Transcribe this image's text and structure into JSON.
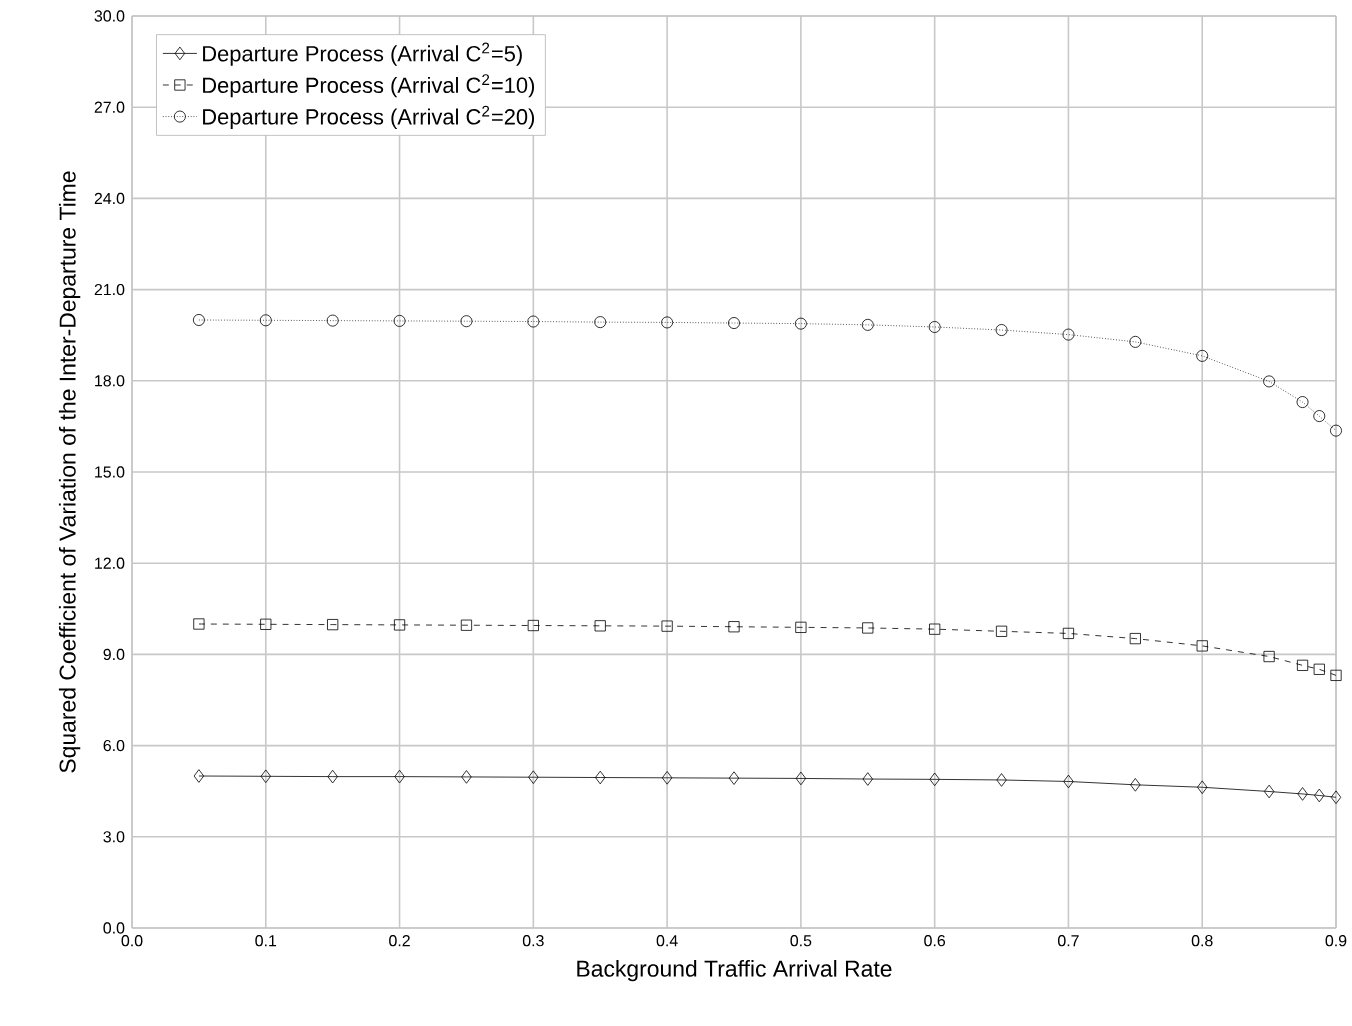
{
  "chart_data": {
    "type": "line",
    "xlabel": "Background Traffic Arrival Rate",
    "ylabel": "Squared Coefficient of Variation of the Inter-Departure Time",
    "x": [
      0.05,
      0.1,
      0.15,
      0.2,
      0.25,
      0.3,
      0.35,
      0.4,
      0.45,
      0.5,
      0.55,
      0.6,
      0.65,
      0.7,
      0.75,
      0.8,
      0.85,
      0.875,
      0.8875,
      0.9
    ],
    "series": [
      {
        "name": "Departure Process (Arrival C$^{2}$=5)",
        "color": "#000000",
        "marker": "diamond",
        "line_style": "solid",
        "values": [
          5.0,
          4.99,
          4.98,
          4.98,
          4.97,
          4.96,
          4.95,
          4.94,
          4.93,
          4.92,
          4.9,
          4.89,
          4.87,
          4.82,
          4.71,
          4.63,
          4.49,
          4.41,
          4.36,
          4.3
        ]
      },
      {
        "name": "Departure Process (Arrival C$^{2}$=10)",
        "color": "#000000",
        "marker": "square",
        "line_style": "dashed",
        "values": [
          10.0,
          9.99,
          9.98,
          9.97,
          9.96,
          9.95,
          9.94,
          9.93,
          9.91,
          9.89,
          9.87,
          9.83,
          9.76,
          9.69,
          9.52,
          9.28,
          8.93,
          8.64,
          8.51,
          8.31
        ]
      },
      {
        "name": "Departure Process (Arrival C$^{2}$=20)",
        "color": "#000000",
        "marker": "circle",
        "line_style": "dotted",
        "values": [
          20.0,
          19.99,
          19.98,
          19.97,
          19.96,
          19.95,
          19.93,
          19.92,
          19.9,
          19.88,
          19.84,
          19.77,
          19.67,
          19.52,
          19.28,
          18.82,
          17.98,
          17.3,
          16.84,
          16.36
        ]
      }
    ],
    "xlim": [
      0.0,
      0.9
    ],
    "xticks": [
      {
        "value": 0.0,
        "label": "0.0"
      },
      0.1,
      0.2,
      0.3,
      0.4,
      0.5,
      0.6,
      0.7,
      0.8,
      0.9
    ],
    "ylim": [
      0.0,
      30.0
    ],
    "yticks": [
      {
        "value": 0.0,
        "label": "0.0"
      },
      {
        "value": 3.0,
        "label": "3.0"
      },
      {
        "value": 6.0,
        "label": "6.0"
      },
      {
        "value": 9.0,
        "label": "9.0"
      },
      {
        "value": 12.0,
        "label": "12.0"
      },
      {
        "value": 15.0,
        "label": "15.0"
      },
      {
        "value": 18.0,
        "label": "18.0"
      },
      {
        "value": 21.0,
        "label": "21.0"
      },
      {
        "value": 24.0,
        "label": "24.0"
      },
      {
        "value": 27.0,
        "label": "27.0"
      },
      {
        "value": 30.0,
        "label": "30.0"
      }
    ],
    "grid": true,
    "legend": "top left"
  }
}
